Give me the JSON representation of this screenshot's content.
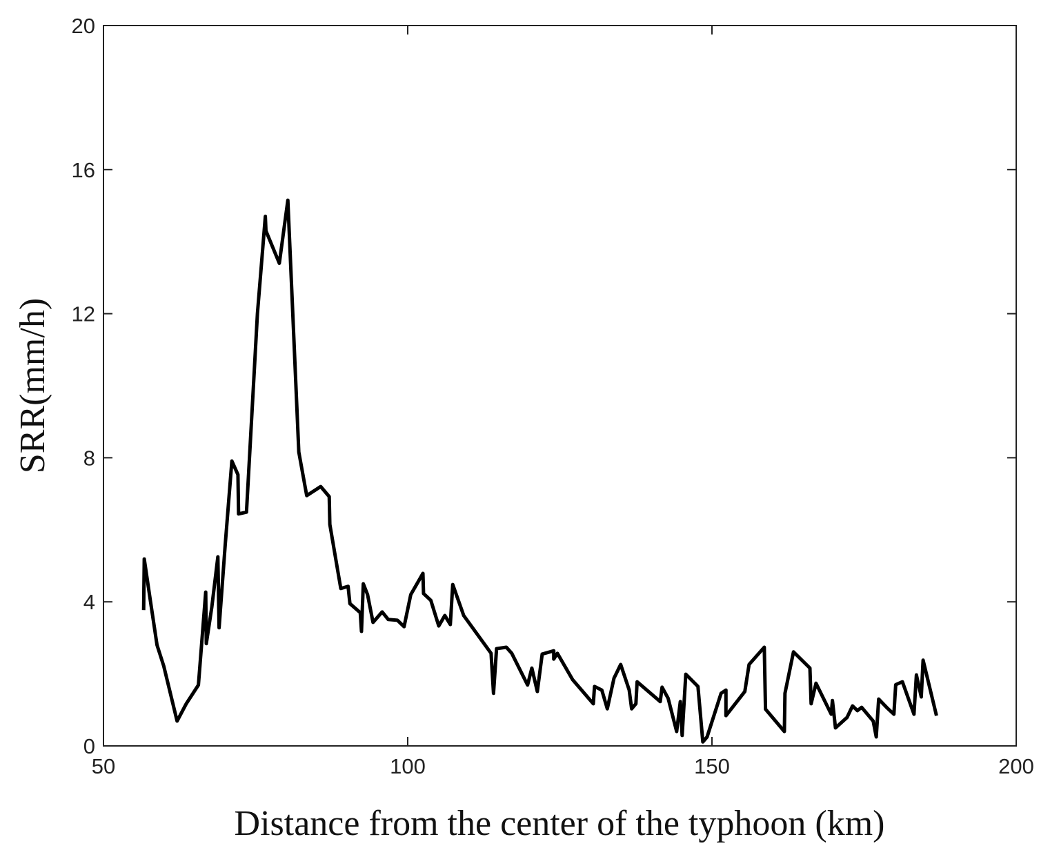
{
  "chart_data": {
    "type": "line",
    "xlabel": "Distance from the center of the typhoon (km)",
    "ylabel": "SRR(mm/h)",
    "xlim": [
      50,
      200
    ],
    "xticks": [
      50,
      100,
      150,
      200
    ],
    "ylim": [
      0,
      20
    ],
    "yticks": [
      0,
      4,
      8,
      12,
      16,
      20
    ],
    "series": [
      {
        "color": "#000000",
        "x": [
          56.6,
          56.7,
          57.7,
          58.8,
          59.9,
          62.1,
          63.6,
          65.6,
          66.8,
          66.9,
          67.8,
          68.8,
          69.0,
          70.0,
          71.1,
          72.1,
          72.2,
          73.5,
          75.3,
          76.6,
          76.7,
          78.9,
          80.3,
          82.1,
          83.4,
          85.7,
          87.1,
          87.2,
          89.0,
          90.2,
          90.5,
          92.2,
          92.4,
          92.7,
          93.4,
          94.3,
          95.8,
          96.8,
          98.3,
          99.4,
          100.5,
          102.5,
          102.6,
          103.8,
          105.1,
          106.1,
          107.0,
          107.4,
          109.2,
          113.7,
          114.1,
          114.6,
          116.2,
          117.1,
          119.7,
          120.4,
          121.3,
          122.1,
          124.0,
          124.0,
          124.6,
          127.1,
          130.5,
          130.7,
          131.9,
          132.8,
          133.9,
          135.0,
          136.4,
          136.8,
          137.5,
          137.7,
          141.5,
          141.8,
          142.8,
          144.2,
          144.8,
          145.1,
          145.7,
          147.7,
          148.5,
          149.2,
          151.5,
          152.3,
          152.3,
          155.4,
          156.1,
          158.6,
          158.8,
          161.9,
          162.0,
          163.4,
          166.1,
          166.3,
          167.1,
          169.6,
          169.8,
          170.3,
          172.2,
          173.1,
          173.9,
          174.6,
          176.5,
          177.0,
          177.4,
          178.7,
          179.9,
          180.2,
          181.3,
          183.2,
          183.6,
          184.4,
          184.7,
          186.9
        ],
        "values": [
          3.77,
          5.19,
          4.04,
          2.8,
          2.22,
          0.69,
          1.17,
          1.69,
          4.27,
          2.84,
          3.85,
          5.25,
          3.28,
          5.57,
          7.91,
          7.53,
          6.44,
          6.49,
          12.0,
          14.7,
          14.3,
          13.4,
          15.15,
          8.16,
          6.95,
          7.2,
          6.92,
          6.15,
          4.37,
          4.43,
          3.95,
          3.7,
          3.18,
          4.5,
          4.2,
          3.43,
          3.72,
          3.51,
          3.49,
          3.31,
          4.2,
          4.79,
          4.23,
          4.04,
          3.33,
          3.62,
          3.37,
          4.48,
          3.62,
          2.57,
          1.46,
          2.7,
          2.74,
          2.57,
          1.69,
          2.16,
          1.51,
          2.55,
          2.64,
          2.41,
          2.57,
          1.84,
          1.17,
          1.65,
          1.55,
          1.03,
          1.88,
          2.26,
          1.55,
          1.03,
          1.17,
          1.78,
          1.23,
          1.63,
          1.32,
          0.4,
          1.23,
          0.29,
          1.99,
          1.65,
          0.11,
          0.25,
          1.46,
          1.55,
          0.84,
          1.51,
          2.26,
          2.74,
          1.02,
          0.4,
          1.46,
          2.61,
          2.16,
          1.17,
          1.74,
          0.88,
          1.26,
          0.5,
          0.79,
          1.11,
          0.98,
          1.07,
          0.69,
          0.25,
          1.3,
          1.07,
          0.88,
          1.7,
          1.78,
          0.88,
          1.97,
          1.36,
          2.38,
          0.84
        ]
      }
    ]
  }
}
